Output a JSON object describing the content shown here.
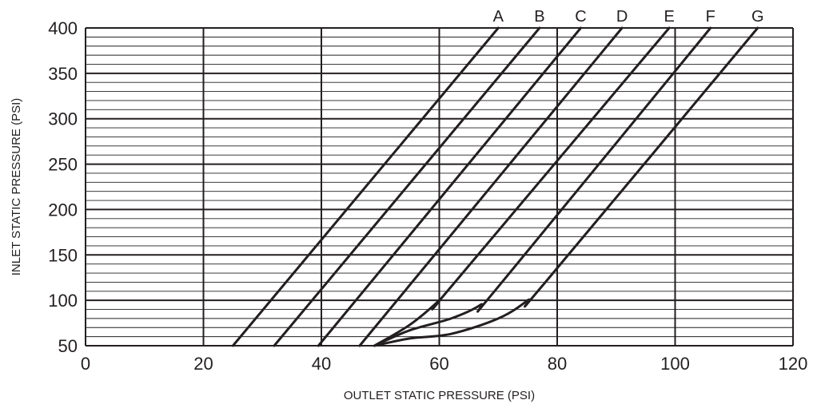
{
  "chart_data": {
    "type": "line",
    "title": "",
    "xlabel": "OUTLET STATIC PRESSURE (PSI)",
    "ylabel": "INLET STATIC PRESSURE (PSI)",
    "xlim": [
      0,
      120
    ],
    "ylim": [
      50,
      400
    ],
    "x_ticks": [
      0,
      20,
      40,
      60,
      80,
      100,
      120
    ],
    "y_ticks": [
      50,
      100,
      150,
      200,
      250,
      300,
      350,
      400
    ],
    "x_tick_labels": [
      "0",
      "20",
      "40",
      "60",
      "80",
      "100",
      "120"
    ],
    "y_tick_labels": [
      "50",
      "100",
      "150",
      "200",
      "250",
      "300",
      "350",
      "400"
    ],
    "minor_y_step": 10,
    "grid": true,
    "series": [
      {
        "name": "A",
        "x": [
          25,
          70
        ],
        "y": [
          50,
          400
        ]
      },
      {
        "name": "B",
        "x": [
          32,
          77
        ],
        "y": [
          50,
          400
        ]
      },
      {
        "name": "C",
        "x": [
          39.5,
          84
        ],
        "y": [
          50,
          400
        ]
      },
      {
        "name": "D",
        "x": [
          46.5,
          91
        ],
        "y": [
          50,
          400
        ]
      },
      {
        "name": "E",
        "x": [
          49,
          55,
          60,
          62,
          99
        ],
        "y": [
          50,
          73,
          100,
          115,
          400
        ]
      },
      {
        "name": "F",
        "x": [
          49,
          55,
          62,
          67,
          70,
          106
        ],
        "y": [
          50,
          67,
          80,
          95,
          115,
          400
        ]
      },
      {
        "name": "G",
        "x": [
          49,
          55,
          62,
          70,
          75,
          78,
          114
        ],
        "y": [
          50,
          58,
          63,
          80,
          100,
          120,
          400
        ]
      }
    ]
  }
}
